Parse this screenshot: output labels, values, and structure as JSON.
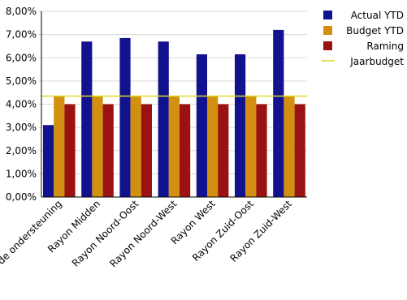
{
  "chart_data": {
    "type": "bar",
    "title": "",
    "xlabel": "",
    "ylabel": "",
    "ylim": [
      0,
      8
    ],
    "y_tick_step": 1,
    "y_tick_labels": [
      "0,00%",
      "1,00%",
      "2,00%",
      "3,00%",
      "4,00%",
      "5,00%",
      "6,00%",
      "7,00%",
      "8,00%"
    ],
    "grid": true,
    "legend_position": "top-right",
    "categories": [
      "Ondersteuning en ondersteuning",
      "Rayon Midden",
      "Rayon Noord-Oost",
      "Rayon Noord-West",
      "Rayon West",
      "Rayon Zuid-Oost",
      "Rayon Zuid-West"
    ],
    "category_labels": [
      "de ondersteuning",
      "Rayon Midden",
      "Rayon Noord-Oost",
      "Rayon Noord-West",
      "Rayon West",
      "Rayon Zuid-Oost",
      "Rayon Zuid-West"
    ],
    "series": [
      {
        "name": "Actual YTD",
        "color": "#13128e",
        "values": [
          3.1,
          6.7,
          6.85,
          6.7,
          6.15,
          6.15,
          7.2
        ]
      },
      {
        "name": "Budget YTD",
        "color": "#d38f0f",
        "values": [
          4.35,
          4.35,
          4.35,
          4.35,
          4.35,
          4.35,
          4.35
        ]
      },
      {
        "name": "Raming",
        "color": "#9a1212",
        "values": [
          4.0,
          4.0,
          4.0,
          4.0,
          4.0,
          4.0,
          4.0
        ]
      }
    ],
    "reference_line": {
      "name": "Jaarbudget",
      "color": "#d9d92a",
      "value": 4.35
    }
  }
}
